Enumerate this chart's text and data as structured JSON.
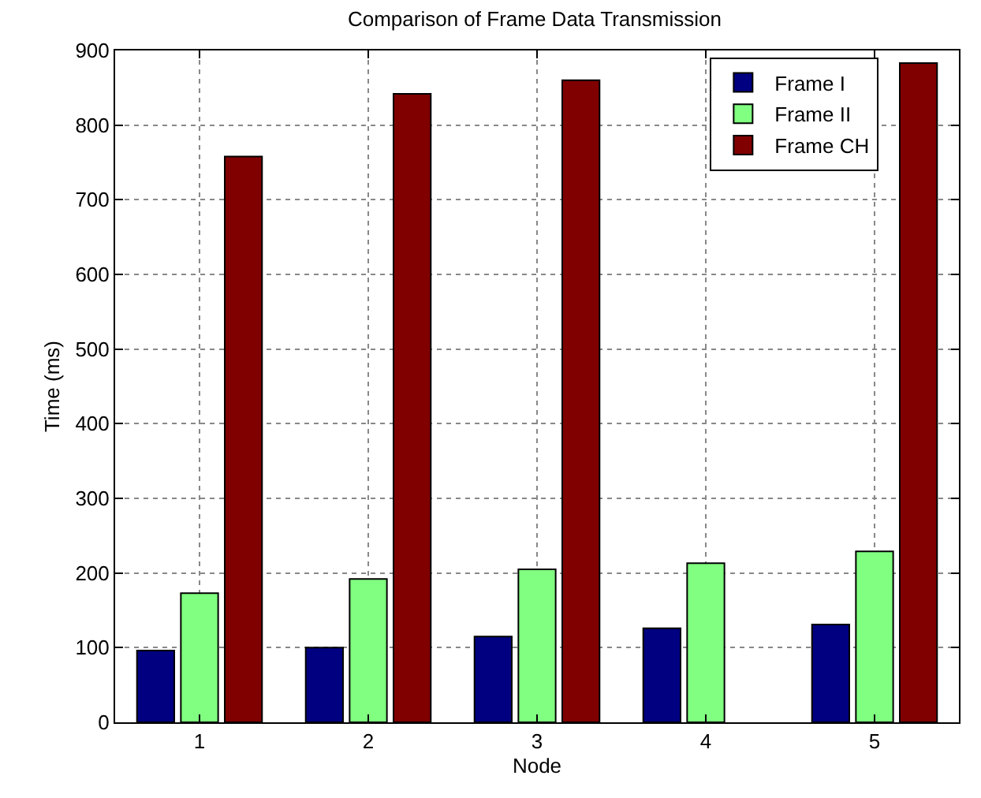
{
  "chart_data": {
    "type": "bar",
    "title": "Comparison of Frame Data Transmission",
    "xlabel": "Node",
    "ylabel": "Time (ms)",
    "categories": [
      "1",
      "2",
      "3",
      "4",
      "5"
    ],
    "series": [
      {
        "name": "Frame I",
        "color": "#000080",
        "values": [
          96,
          100,
          115,
          126,
          131
        ]
      },
      {
        "name": "Frame II",
        "color": "#80ff80",
        "values": [
          173,
          192,
          205,
          213,
          229
        ]
      },
      {
        "name": "Frame CH",
        "color": "#800000",
        "values": [
          758,
          842,
          860,
          null,
          883
        ]
      }
    ],
    "ylim": [
      0,
      900
    ],
    "yticks": [
      0,
      100,
      200,
      300,
      400,
      500,
      600,
      700,
      800,
      900
    ],
    "grid": true,
    "legend": "top right"
  }
}
